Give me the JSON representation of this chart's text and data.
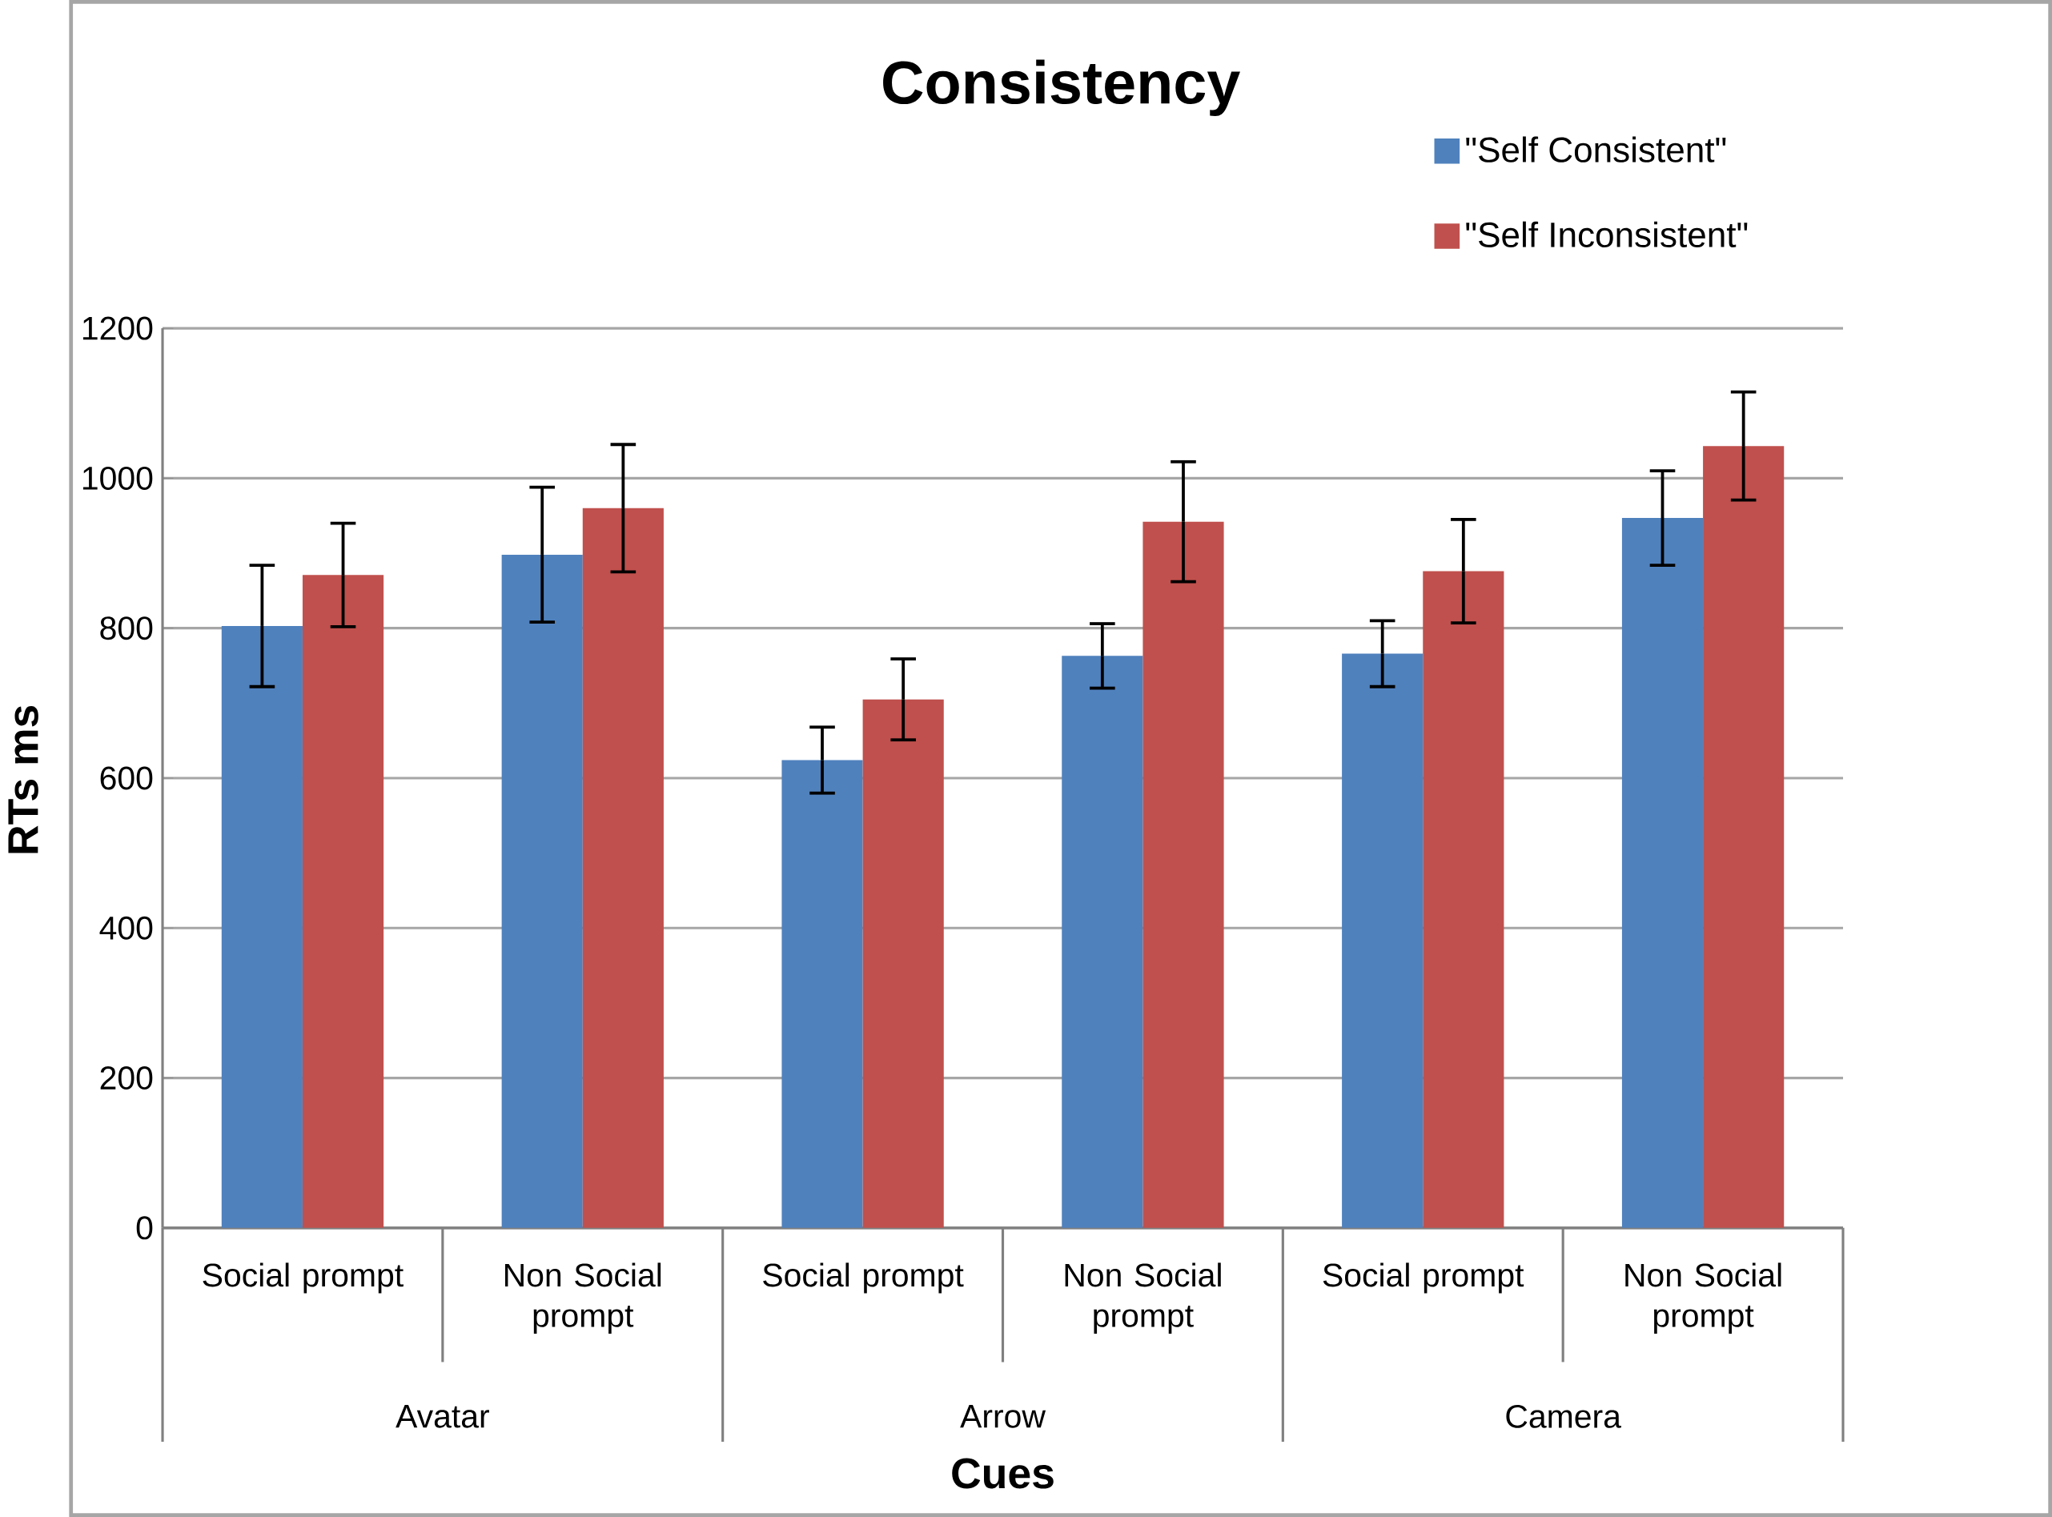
{
  "chart_data": {
    "type": "bar",
    "title": "Consistency",
    "xlabel": "Cues",
    "ylabel": "RTs ms",
    "categories": [
      "Social prompt",
      "Non Social prompt",
      "Social prompt",
      "Non Social prompt",
      "Social prompt",
      "Non Social prompt"
    ],
    "annotations": [
      "Avatar",
      "Arrow",
      "Camera"
    ],
    "series": [
      {
        "name": "\"Self Consistent\"",
        "color": "#4f81bd",
        "values": [
          803,
          898,
          624,
          763,
          766,
          947
        ],
        "errors": [
          81,
          90,
          44,
          43,
          44,
          63
        ]
      },
      {
        "name": "\"Self Inconsistent\"",
        "color": "#c0504d",
        "values": [
          871,
          960,
          705,
          942,
          876,
          1043
        ],
        "errors": [
          69,
          85,
          54,
          80,
          69,
          72
        ]
      }
    ],
    "ylim": [
      0,
      1200
    ],
    "yticks": [
      0,
      200,
      400,
      600,
      800,
      1000,
      1200
    ],
    "grid": "y",
    "legend": "top right"
  }
}
